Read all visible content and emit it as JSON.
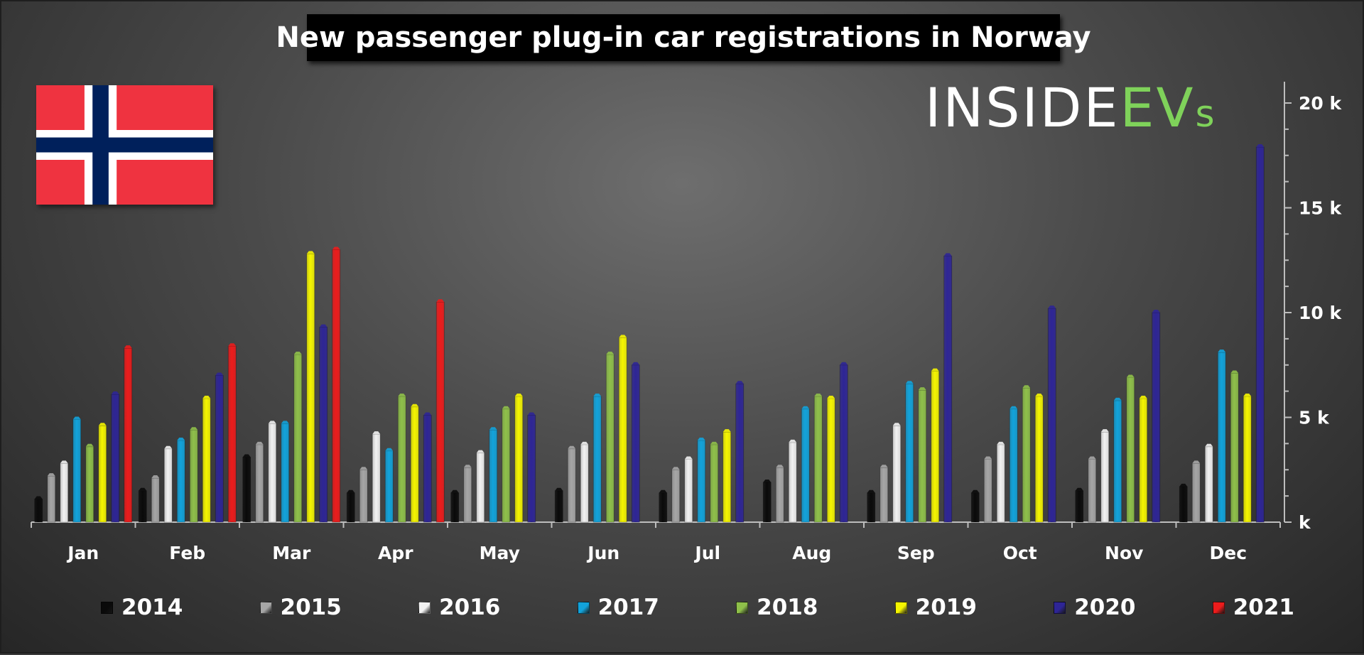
{
  "chart_data": {
    "type": "bar",
    "title": "New passenger plug-in car registrations in Norway",
    "logo_text": {
      "main": "INSIDE",
      "accent": "EV",
      "suffix": "s"
    },
    "categories": [
      "Jan",
      "Feb",
      "Mar",
      "Apr",
      "May",
      "Jun",
      "Jul",
      "Aug",
      "Sep",
      "Oct",
      "Nov",
      "Dec"
    ],
    "ylim": [
      0,
      20000
    ],
    "y_ticks": [
      {
        "value": 0,
        "label": "k"
      },
      {
        "value": 5000,
        "label": "5 k"
      },
      {
        "value": 10000,
        "label": "10 k"
      },
      {
        "value": 15000,
        "label": "15 k"
      },
      {
        "value": 20000,
        "label": "20 k"
      }
    ],
    "legend_position": "bottom",
    "grid": false,
    "series": [
      {
        "name": "2014",
        "color": "#0a0a0a",
        "values": [
          1100,
          1500,
          3100,
          1400,
          1400,
          1500,
          1400,
          1900,
          1400,
          1400,
          1500,
          1700
        ]
      },
      {
        "name": "2015",
        "color": "#a6a6a6",
        "values": [
          2200,
          2100,
          3700,
          2500,
          2600,
          3500,
          2500,
          2600,
          2600,
          3000,
          3000,
          2800
        ]
      },
      {
        "name": "2016",
        "color": "#f2f2f2",
        "values": [
          2800,
          3500,
          4700,
          4200,
          3300,
          3700,
          3000,
          3800,
          4600,
          3700,
          4300,
          3600
        ]
      },
      {
        "name": "2017",
        "color": "#12a3db",
        "values": [
          4900,
          3900,
          4700,
          3400,
          4400,
          6000,
          3900,
          5400,
          6600,
          5400,
          5800,
          8100
        ]
      },
      {
        "name": "2018",
        "color": "#8fc04a",
        "values": [
          3600,
          4400,
          8000,
          6000,
          5400,
          8000,
          3700,
          6000,
          6300,
          6400,
          6900,
          7100
        ]
      },
      {
        "name": "2019",
        "color": "#f5f500",
        "values": [
          4600,
          5900,
          12800,
          5500,
          6000,
          8800,
          4300,
          5900,
          7200,
          6000,
          5900,
          6000
        ]
      },
      {
        "name": "2020",
        "color": "#2e2596",
        "values": [
          6100,
          7000,
          9300,
          5100,
          5100,
          7500,
          6600,
          7500,
          12700,
          10200,
          10000,
          17900
        ]
      },
      {
        "name": "2021",
        "color": "#ec1c1c",
        "values": [
          8300,
          8400,
          13000,
          10500,
          null,
          null,
          null,
          null,
          null,
          null,
          null,
          null
        ]
      }
    ]
  }
}
